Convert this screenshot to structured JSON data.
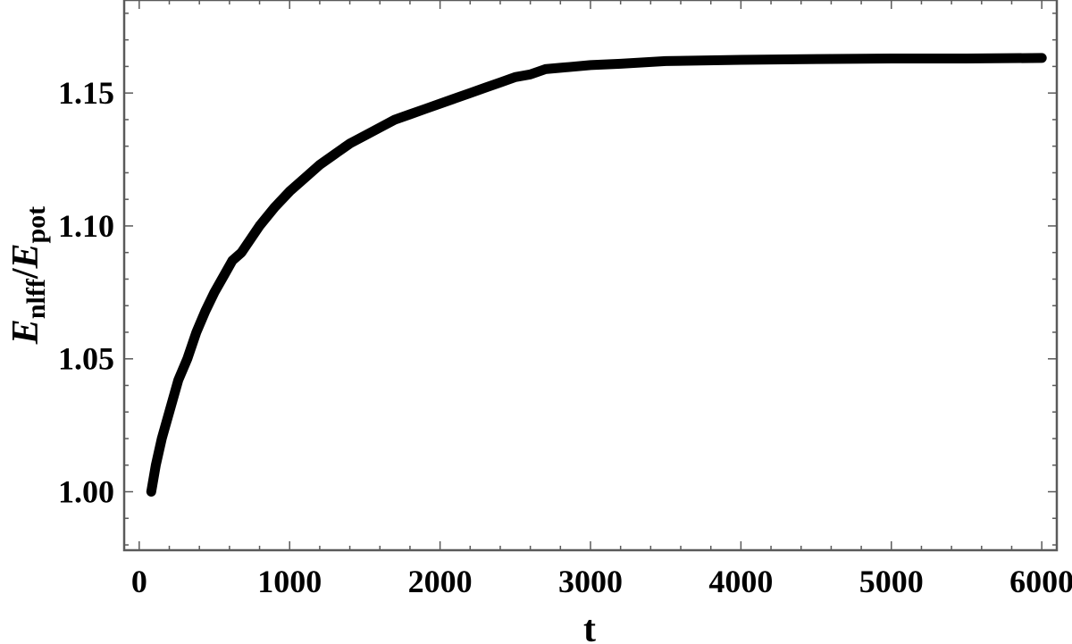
{
  "chart_data": {
    "type": "line",
    "title": "",
    "xlabel": "t",
    "ylabel": {
      "E1": "E",
      "sub1": "nlff",
      "slash": "/",
      "E2": "E",
      "sub2": "pot"
    },
    "xlim": [
      -100,
      6100
    ],
    "ylim": [
      0.978,
      1.185
    ],
    "grid": false,
    "x_ticks": [
      0,
      1000,
      2000,
      3000,
      4000,
      5000,
      6000
    ],
    "x_tick_labels": [
      "0",
      "1000",
      "2000",
      "3000",
      "4000",
      "5000",
      "6000"
    ],
    "y_ticks": [
      1.0,
      1.05,
      1.1,
      1.15
    ],
    "y_tick_labels": [
      "1.00",
      "1.05",
      "1.10",
      "1.15"
    ],
    "series": [
      {
        "color": "#000000",
        "x": [
          80,
          110,
          150,
          200,
          260,
          320,
          380,
          440,
          500,
          560,
          620,
          680,
          740,
          800,
          900,
          1000,
          1100,
          1200,
          1300,
          1400,
          1500,
          1600,
          1700,
          1800,
          1900,
          2000,
          2100,
          2200,
          2300,
          2400,
          2500,
          2600,
          2700,
          2800,
          3000,
          3200,
          3500,
          4000,
          4500,
          5000,
          5500,
          6000
        ],
        "y": [
          1.0,
          1.01,
          1.02,
          1.03,
          1.042,
          1.05,
          1.06,
          1.068,
          1.075,
          1.081,
          1.087,
          1.09,
          1.095,
          1.1,
          1.107,
          1.113,
          1.118,
          1.123,
          1.127,
          1.131,
          1.134,
          1.137,
          1.14,
          1.142,
          1.144,
          1.146,
          1.148,
          1.15,
          1.152,
          1.154,
          1.156,
          1.157,
          1.159,
          1.1595,
          1.1605,
          1.161,
          1.162,
          1.1625,
          1.1628,
          1.163,
          1.163,
          1.1632
        ]
      }
    ]
  }
}
